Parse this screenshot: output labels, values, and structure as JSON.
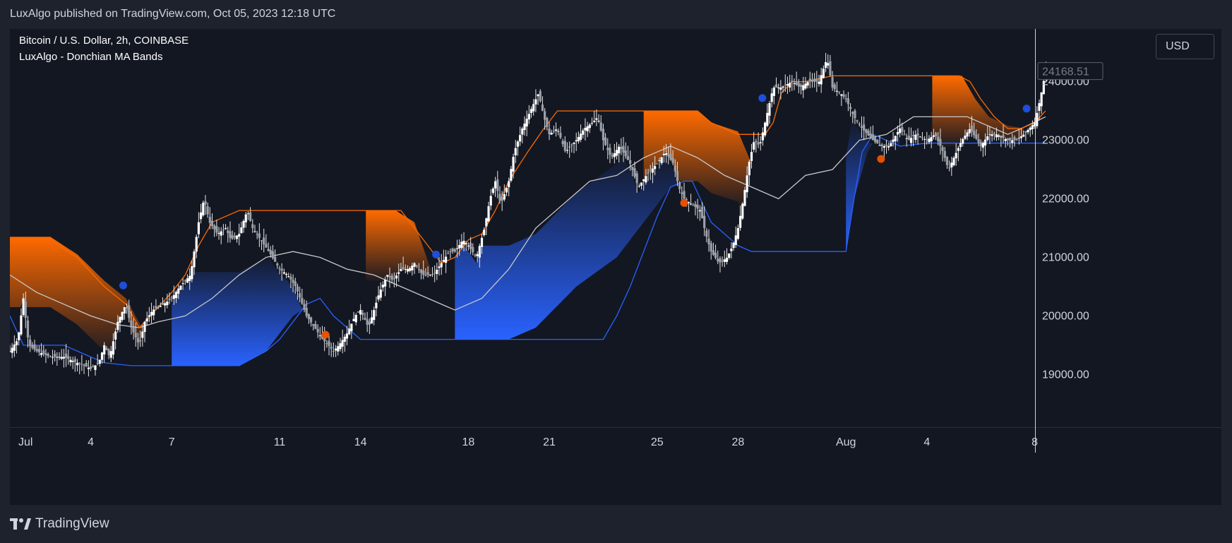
{
  "header": {
    "published_text": "LuxAlgo published on TradingView.com, Oct 05, 2023 12:18 UTC"
  },
  "legend": {
    "symbol": "Bitcoin / U.S. Dollar, 2h, COINBASE",
    "indicator": "LuxAlgo - Donchian MA Bands"
  },
  "price_axis": {
    "currency": "USD",
    "current_price_label": "24168.51",
    "tick_labels": [
      "24000.00",
      "23000.00",
      "22000.00",
      "21000.00",
      "20000.00",
      "19000.00"
    ]
  },
  "footer": {
    "brand": "TradingView"
  },
  "colors": {
    "background": "#131722",
    "upper_band": "#ff6a00",
    "lower_band": "#2962ff",
    "ma_line": "#c8c8c8",
    "candle": "#e6e6e6",
    "bull_dot": "#1e4fd8",
    "bear_dot": "#e65100"
  },
  "chart_data": {
    "type": "candlestick",
    "title": "Bitcoin / U.S. Dollar, 2h, COINBASE",
    "indicator": "LuxAlgo - Donchian MA Bands",
    "x_tick_labels": [
      "Jul",
      "4",
      "7",
      "11",
      "14",
      "18",
      "21",
      "25",
      "28",
      "Aug",
      "4",
      "8"
    ],
    "x_tick_index": [
      0,
      3,
      6,
      10,
      13,
      17,
      20,
      24,
      27,
      31,
      34,
      38
    ],
    "ylim": [
      18100,
      24900
    ],
    "y_ticks": [
      19000,
      20000,
      21000,
      22000,
      23000,
      24000
    ],
    "days": 38.5,
    "close_series": [
      [
        0.0,
        19400
      ],
      [
        0.3,
        19600
      ],
      [
        0.5,
        20300
      ],
      [
        0.7,
        19500
      ],
      [
        1.0,
        19400
      ],
      [
        1.5,
        19300
      ],
      [
        2.0,
        19300
      ],
      [
        2.5,
        19200
      ],
      [
        3.0,
        19100
      ],
      [
        3.3,
        19200
      ],
      [
        3.5,
        19500
      ],
      [
        3.7,
        19300
      ],
      [
        4.0,
        19900
      ],
      [
        4.3,
        20200
      ],
      [
        4.5,
        19800
      ],
      [
        4.8,
        19500
      ],
      [
        5.0,
        19900
      ],
      [
        5.3,
        20100
      ],
      [
        5.7,
        20200
      ],
      [
        6.0,
        20300
      ],
      [
        6.3,
        20500
      ],
      [
        6.7,
        20700
      ],
      [
        7.0,
        21600
      ],
      [
        7.2,
        22000
      ],
      [
        7.4,
        21600
      ],
      [
        7.7,
        21400
      ],
      [
        8.0,
        21500
      ],
      [
        8.2,
        21300
      ],
      [
        8.5,
        21400
      ],
      [
        8.8,
        21800
      ],
      [
        9.0,
        21500
      ],
      [
        9.3,
        21300
      ],
      [
        9.6,
        21100
      ],
      [
        10.0,
        20800
      ],
      [
        10.3,
        20700
      ],
      [
        10.6,
        20500
      ],
      [
        11.0,
        20000
      ],
      [
        11.3,
        19800
      ],
      [
        11.6,
        19600
      ],
      [
        12.0,
        19400
      ],
      [
        12.2,
        19500
      ],
      [
        12.5,
        19700
      ],
      [
        12.8,
        20000
      ],
      [
        13.0,
        20100
      ],
      [
        13.3,
        19800
      ],
      [
        13.7,
        20400
      ],
      [
        14.0,
        20700
      ],
      [
        14.2,
        20600
      ],
      [
        14.5,
        20800
      ],
      [
        14.8,
        20800
      ],
      [
        15.0,
        20900
      ],
      [
        15.3,
        20700
      ],
      [
        15.7,
        20700
      ],
      [
        16.0,
        20900
      ],
      [
        16.3,
        21100
      ],
      [
        16.5,
        21100
      ],
      [
        16.8,
        21300
      ],
      [
        17.0,
        21200
      ],
      [
        17.3,
        21000
      ],
      [
        17.6,
        21500
      ],
      [
        17.8,
        22000
      ],
      [
        18.0,
        22300
      ],
      [
        18.2,
        21900
      ],
      [
        18.5,
        22300
      ],
      [
        18.7,
        22800
      ],
      [
        19.0,
        23200
      ],
      [
        19.3,
        23500
      ],
      [
        19.6,
        23800
      ],
      [
        19.8,
        23400
      ],
      [
        20.0,
        23100
      ],
      [
        20.3,
        23200
      ],
      [
        20.6,
        22800
      ],
      [
        21.0,
        23000
      ],
      [
        21.3,
        23200
      ],
      [
        21.6,
        23300
      ],
      [
        21.8,
        23400
      ],
      [
        22.0,
        23000
      ],
      [
        22.3,
        22700
      ],
      [
        22.6,
        22900
      ],
      [
        23.0,
        22600
      ],
      [
        23.3,
        22200
      ],
      [
        23.6,
        22400
      ],
      [
        24.0,
        22600
      ],
      [
        24.3,
        22800
      ],
      [
        24.6,
        22600
      ],
      [
        24.8,
        22200
      ],
      [
        25.0,
        22000
      ],
      [
        25.3,
        21900
      ],
      [
        25.6,
        21800
      ],
      [
        25.8,
        21400
      ],
      [
        26.0,
        21100
      ],
      [
        26.3,
        20900
      ],
      [
        26.6,
        21000
      ],
      [
        26.8,
        21200
      ],
      [
        27.0,
        21500
      ],
      [
        27.2,
        22000
      ],
      [
        27.4,
        22600
      ],
      [
        27.6,
        23000
      ],
      [
        27.8,
        22900
      ],
      [
        28.0,
        23300
      ],
      [
        28.3,
        23900
      ],
      [
        28.6,
        23900
      ],
      [
        29.0,
        24000
      ],
      [
        29.3,
        23900
      ],
      [
        29.6,
        24000
      ],
      [
        30.0,
        24000
      ],
      [
        30.3,
        24400
      ],
      [
        30.5,
        23900
      ],
      [
        30.8,
        23800
      ],
      [
        31.0,
        23700
      ],
      [
        31.3,
        23400
      ],
      [
        31.6,
        23200
      ],
      [
        32.0,
        23000
      ],
      [
        32.3,
        22900
      ],
      [
        32.6,
        22900
      ],
      [
        33.0,
        23200
      ],
      [
        33.3,
        23000
      ],
      [
        33.6,
        23100
      ],
      [
        34.0,
        23000
      ],
      [
        34.3,
        23100
      ],
      [
        34.6,
        22800
      ],
      [
        34.8,
        22500
      ],
      [
        35.0,
        22700
      ],
      [
        35.3,
        23000
      ],
      [
        35.6,
        23200
      ],
      [
        36.0,
        22900
      ],
      [
        36.3,
        23100
      ],
      [
        36.6,
        23100
      ],
      [
        37.0,
        23000
      ],
      [
        37.3,
        23000
      ],
      [
        37.6,
        23100
      ],
      [
        38.0,
        23300
      ],
      [
        38.2,
        23700
      ],
      [
        38.4,
        24168
      ]
    ],
    "ma_series": [
      [
        0.0,
        20700
      ],
      [
        1.0,
        20400
      ],
      [
        2.0,
        20200
      ],
      [
        3.0,
        20000
      ],
      [
        4.0,
        19850
      ],
      [
        4.8,
        19800
      ],
      [
        5.5,
        19900
      ],
      [
        6.5,
        20000
      ],
      [
        7.5,
        20300
      ],
      [
        8.5,
        20700
      ],
      [
        9.5,
        21000
      ],
      [
        10.5,
        21100
      ],
      [
        11.5,
        21000
      ],
      [
        12.5,
        20800
      ],
      [
        13.5,
        20700
      ],
      [
        14.5,
        20500
      ],
      [
        15.5,
        20300
      ],
      [
        16.5,
        20100
      ],
      [
        17.5,
        20300
      ],
      [
        18.5,
        20800
      ],
      [
        19.5,
        21500
      ],
      [
        20.5,
        21900
      ],
      [
        21.5,
        22300
      ],
      [
        22.5,
        22400
      ],
      [
        23.5,
        22700
      ],
      [
        24.5,
        22900
      ],
      [
        25.5,
        22700
      ],
      [
        26.5,
        22400
      ],
      [
        27.5,
        22200
      ],
      [
        28.5,
        22000
      ],
      [
        29.5,
        22400
      ],
      [
        30.5,
        22500
      ],
      [
        31.5,
        23000
      ],
      [
        32.5,
        23100
      ],
      [
        33.5,
        23400
      ],
      [
        34.5,
        23400
      ],
      [
        35.5,
        23400
      ],
      [
        36.5,
        23200
      ],
      [
        37.0,
        23100
      ],
      [
        37.5,
        23200
      ],
      [
        38.4,
        23400
      ]
    ],
    "upper_band": [
      [
        0.0,
        21300
      ],
      [
        1.0,
        21300
      ],
      [
        1.5,
        21300
      ],
      [
        2.5,
        21000
      ],
      [
        3.5,
        20500
      ],
      [
        4.3,
        20200
      ],
      [
        4.8,
        19800
      ],
      [
        5.2,
        20000
      ],
      [
        6.0,
        20400
      ],
      [
        6.5,
        20700
      ],
      [
        7.0,
        21200
      ],
      [
        7.5,
        21600
      ],
      [
        8.5,
        21800
      ],
      [
        9.5,
        21800
      ],
      [
        10.5,
        21800
      ],
      [
        11.5,
        21800
      ],
      [
        12.5,
        21800
      ],
      [
        13.5,
        21800
      ],
      [
        14.5,
        21800
      ],
      [
        15.0,
        21500
      ],
      [
        15.5,
        21200
      ],
      [
        16.0,
        20900
      ],
      [
        16.5,
        21000
      ],
      [
        17.0,
        21300
      ],
      [
        17.5,
        21400
      ],
      [
        18.0,
        21800
      ],
      [
        18.5,
        22300
      ],
      [
        19.2,
        22800
      ],
      [
        19.8,
        23200
      ],
      [
        20.3,
        23500
      ],
      [
        21.5,
        23500
      ],
      [
        23.5,
        23500
      ],
      [
        24.5,
        23500
      ],
      [
        25.5,
        23500
      ],
      [
        26.0,
        23300
      ],
      [
        26.5,
        23200
      ],
      [
        27.0,
        23100
      ],
      [
        27.5,
        23100
      ],
      [
        28.0,
        23100
      ],
      [
        28.3,
        23300
      ],
      [
        28.6,
        23800
      ],
      [
        29.0,
        24000
      ],
      [
        29.5,
        24000
      ],
      [
        30.5,
        24100
      ],
      [
        31.5,
        24100
      ],
      [
        32.5,
        24100
      ],
      [
        33.5,
        24100
      ],
      [
        34.5,
        24100
      ],
      [
        35.2,
        24100
      ],
      [
        35.6,
        24000
      ],
      [
        36.0,
        23700
      ],
      [
        36.5,
        23400
      ],
      [
        37.0,
        23200
      ],
      [
        37.5,
        23200
      ],
      [
        38.0,
        23300
      ],
      [
        38.4,
        23500
      ]
    ],
    "lower_band": [
      [
        0.0,
        20000
      ],
      [
        0.5,
        19500
      ],
      [
        1.0,
        19500
      ],
      [
        2.0,
        19500
      ],
      [
        3.0,
        19300
      ],
      [
        3.5,
        19200
      ],
      [
        4.5,
        19150
      ],
      [
        5.5,
        19150
      ],
      [
        6.5,
        19150
      ],
      [
        7.5,
        19150
      ],
      [
        8.5,
        19150
      ],
      [
        9.5,
        19400
      ],
      [
        10.0,
        19600
      ],
      [
        10.5,
        19900
      ],
      [
        11.0,
        20200
      ],
      [
        11.5,
        20300
      ],
      [
        12.0,
        20000
      ],
      [
        12.5,
        19800
      ],
      [
        13.0,
        19600
      ],
      [
        14.0,
        19600
      ],
      [
        15.0,
        19600
      ],
      [
        16.0,
        19600
      ],
      [
        17.0,
        19600
      ],
      [
        18.0,
        19600
      ],
      [
        19.0,
        19600
      ],
      [
        19.5,
        19600
      ],
      [
        20.5,
        19600
      ],
      [
        22.0,
        19600
      ],
      [
        22.5,
        20000
      ],
      [
        23.0,
        20500
      ],
      [
        23.5,
        21100
      ],
      [
        24.0,
        21700
      ],
      [
        24.5,
        22200
      ],
      [
        25.0,
        22300
      ],
      [
        25.3,
        22300
      ],
      [
        25.6,
        22000
      ],
      [
        26.0,
        21600
      ],
      [
        26.5,
        21400
      ],
      [
        27.0,
        21200
      ],
      [
        27.5,
        21100
      ],
      [
        28.5,
        21100
      ],
      [
        29.5,
        21100
      ],
      [
        30.5,
        21100
      ],
      [
        31.0,
        21100
      ],
      [
        31.3,
        22000
      ],
      [
        31.6,
        22800
      ],
      [
        32.0,
        23100
      ],
      [
        32.5,
        23000
      ],
      [
        33.0,
        22900
      ],
      [
        34.0,
        22950
      ],
      [
        35.0,
        22950
      ],
      [
        36.0,
        22950
      ],
      [
        37.0,
        22950
      ],
      [
        38.4,
        22950
      ]
    ],
    "upper_fill_regions": [
      {
        "from": 0.0,
        "to": 4.9,
        "top": [
          [
            0.0,
            21350
          ],
          [
            1.5,
            21350
          ],
          [
            2.5,
            21050
          ],
          [
            3.5,
            20600
          ],
          [
            4.3,
            20300
          ],
          [
            4.9,
            19800
          ]
        ]
      },
      {
        "from": 13.2,
        "to": 15.6,
        "top": [
          [
            13.2,
            21800
          ],
          [
            14.3,
            21800
          ],
          [
            15.0,
            21600
          ],
          [
            15.6,
            20800
          ]
        ]
      },
      {
        "from": 23.5,
        "to": 27.5,
        "top": [
          [
            23.5,
            23500
          ],
          [
            25.5,
            23500
          ],
          [
            26.0,
            23300
          ],
          [
            27.0,
            23150
          ],
          [
            27.5,
            22600
          ]
        ]
      },
      {
        "from": 34.2,
        "to": 37.6,
        "top": [
          [
            34.2,
            24100
          ],
          [
            35.3,
            24100
          ],
          [
            35.8,
            23700
          ],
          [
            36.3,
            23400
          ],
          [
            37.0,
            23250
          ],
          [
            37.6,
            23200
          ]
        ]
      }
    ],
    "lower_fill_regions": [
      {
        "from": 6.0,
        "to": 12.0,
        "bottom": [
          [
            6.0,
            19150
          ],
          [
            8.5,
            19150
          ],
          [
            9.5,
            19400
          ],
          [
            10.5,
            20000
          ],
          [
            11.5,
            20300
          ],
          [
            12.0,
            20300
          ]
        ]
      },
      {
        "from": 16.5,
        "to": 25.3,
        "bottom": [
          [
            16.5,
            19600
          ],
          [
            18.5,
            19600
          ],
          [
            19.5,
            19800
          ],
          [
            21.0,
            20500
          ],
          [
            22.5,
            21000
          ],
          [
            23.5,
            21600
          ],
          [
            24.5,
            22200
          ],
          [
            25.3,
            22300
          ]
        ]
      },
      {
        "from": 31.0,
        "to": 33.0,
        "bottom": [
          [
            31.0,
            21100
          ],
          [
            31.3,
            22000
          ],
          [
            31.8,
            22800
          ],
          [
            32.2,
            23100
          ],
          [
            33.0,
            22900
          ]
        ]
      }
    ],
    "signal_dots": [
      {
        "x": 4.2,
        "y": 20520,
        "type": "bull"
      },
      {
        "x": 11.7,
        "y": 19680,
        "type": "bear"
      },
      {
        "x": 15.8,
        "y": 21050,
        "type": "bull"
      },
      {
        "x": 25.0,
        "y": 21930,
        "type": "bear"
      },
      {
        "x": 27.9,
        "y": 23720,
        "type": "bull"
      },
      {
        "x": 32.3,
        "y": 22680,
        "type": "bear"
      },
      {
        "x": 37.7,
        "y": 23540,
        "type": "bull"
      }
    ],
    "last_price": 24168.51
  }
}
